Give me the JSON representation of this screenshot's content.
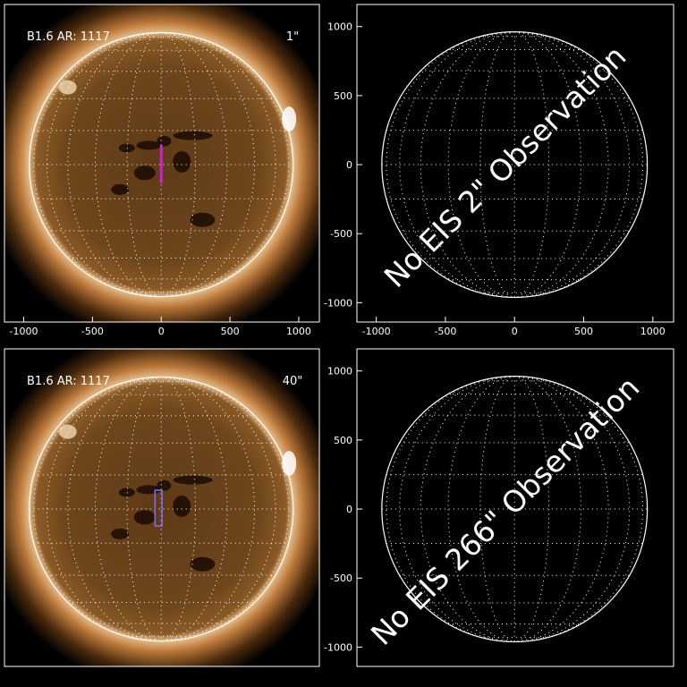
{
  "panels": [
    {
      "label": "B1.6 AR: 1117",
      "slit": "1\"",
      "xlim": [
        -1140,
        1150
      ],
      "ylim": [
        -1140,
        1160
      ],
      "xticks": [
        -1000,
        -500,
        0,
        500,
        1000
      ]
    },
    {
      "message": "No EIS 2\" Observation",
      "xlim": [
        -1140,
        1150
      ],
      "ylim": [
        -1140,
        1160
      ],
      "xticks": [
        -1000,
        -500,
        0,
        500,
        1000
      ],
      "yticks": [
        -1000,
        -500,
        0,
        500,
        1000
      ]
    },
    {
      "label": "B1.6 AR: 1117",
      "slit": "40\"",
      "xlim": [
        -1140,
        1150
      ],
      "ylim": [
        -1140,
        1160
      ]
    },
    {
      "message": "No EIS 266\" Observation",
      "xlim": [
        -1140,
        1150
      ],
      "ylim": [
        -1140,
        1160
      ],
      "yticks": [
        -1000,
        -500,
        0,
        500,
        1000
      ]
    }
  ]
}
